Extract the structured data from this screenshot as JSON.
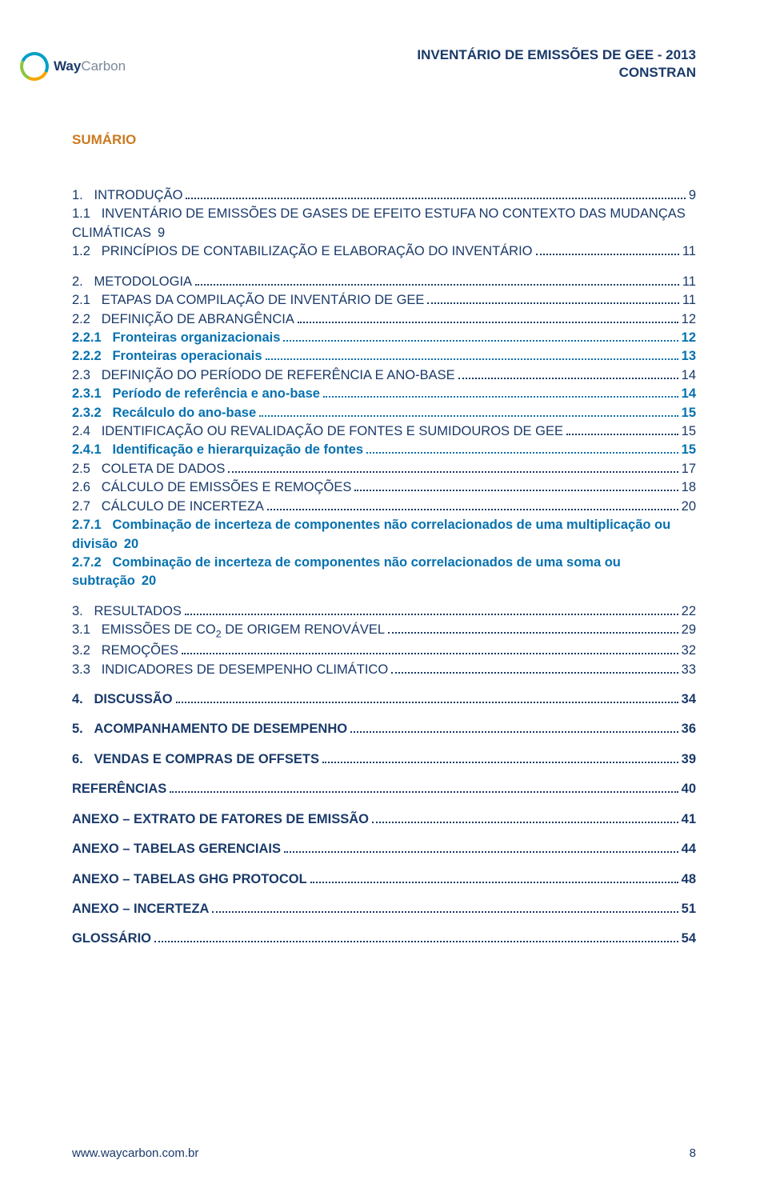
{
  "colors": {
    "main": "#1a3a6a",
    "sub": "#0671b0",
    "orange": "#cc7a1f",
    "background": "#ffffff"
  },
  "header": {
    "line1": "INVENTÁRIO DE EMISSÕES DE GEE - 2013",
    "line2": "CONSTRAN"
  },
  "logo": {
    "part1": "Way",
    "part2": "Carbon"
  },
  "sumario_label": "SUMÁRIO",
  "toc": [
    {
      "group": [
        {
          "type": "main",
          "num": "1.",
          "label": "INTRODUÇÃO",
          "page": "9"
        },
        {
          "type": "main",
          "num": "1.1",
          "label": "INVENTÁRIO DE EMISSÕES DE GASES DE EFEITO ESTUFA NO CONTEXTO DAS MUDANÇAS CLIMÁTICAS",
          "page": "9",
          "wrap": true
        },
        {
          "type": "main",
          "num": "1.2",
          "label": "PRINCÍPIOS DE CONTABILIZAÇÃO E ELABORAÇÃO DO INVENTÁRIO",
          "page": "11"
        }
      ]
    },
    {
      "group": [
        {
          "type": "main",
          "num": "2.",
          "label": "METODOLOGIA",
          "page": "11"
        },
        {
          "type": "main",
          "num": "2.1",
          "label": "ETAPAS DA COMPILAÇÃO DE INVENTÁRIO DE GEE",
          "page": "11"
        },
        {
          "type": "main",
          "num": "2.2",
          "label": "DEFINIÇÃO DE ABRANGÊNCIA",
          "page": "12"
        },
        {
          "type": "sub",
          "num": "2.2.1",
          "label": "Fronteiras organizacionais",
          "page": "12"
        },
        {
          "type": "sub",
          "num": "2.2.2",
          "label": "Fronteiras operacionais",
          "page": "13"
        },
        {
          "type": "main",
          "num": "2.3",
          "label": "DEFINIÇÃO DO PERÍODO DE REFERÊNCIA E ANO-BASE",
          "page": "14"
        },
        {
          "type": "sub",
          "num": "2.3.1",
          "label": "Período de referência e ano-base",
          "page": "14"
        },
        {
          "type": "sub",
          "num": "2.3.2",
          "label": "Recálculo do ano-base",
          "page": "15"
        },
        {
          "type": "main",
          "num": "2.4",
          "label": "IDENTIFICAÇÃO OU REVALIDAÇÃO DE FONTES E SUMIDOUROS DE GEE",
          "page": "15"
        },
        {
          "type": "sub",
          "num": "2.4.1",
          "label": "Identificação e hierarquização de fontes",
          "page": "15"
        },
        {
          "type": "main",
          "num": "2.5",
          "label": "COLETA DE DADOS",
          "page": "17"
        },
        {
          "type": "main",
          "num": "2.6",
          "label": "CÁLCULO DE EMISSÕES E REMOÇÕES",
          "page": "18"
        },
        {
          "type": "main",
          "num": "2.7",
          "label": "CÁLCULO DE INCERTEZA",
          "page": "20"
        },
        {
          "type": "sub",
          "num": "2.7.1",
          "label": "Combinação de incerteza de componentes não correlacionados de uma multiplicação ou divisão",
          "page": "20",
          "wrap": true
        },
        {
          "type": "sub",
          "num": "2.7.2",
          "label": "Combinação de incerteza de componentes não correlacionados de uma soma ou subtração",
          "page": "20",
          "wrap": true
        }
      ]
    },
    {
      "group": [
        {
          "type": "main",
          "num": "3.",
          "label": "RESULTADOS",
          "page": "22"
        },
        {
          "type": "main",
          "num": "3.1",
          "label": "EMISSÕES DE CO",
          "subscript": "2",
          "label2": " DE ORIGEM RENOVÁVEL",
          "page": "29"
        },
        {
          "type": "main",
          "num": "3.2",
          "label": "REMOÇÕES",
          "page": "32"
        },
        {
          "type": "main",
          "num": "3.3",
          "label": "INDICADORES DE DESEMPENHO CLIMÁTICO",
          "page": "33"
        }
      ]
    },
    {
      "group": [
        {
          "type": "main",
          "num": "4.",
          "label": "DISCUSSÃO",
          "page": "34",
          "bold": true
        }
      ]
    },
    {
      "group": [
        {
          "type": "main",
          "num": "5.",
          "label": "ACOMPANHAMENTO DE DESEMPENHO",
          "page": "36",
          "bold": true
        }
      ]
    },
    {
      "group": [
        {
          "type": "main",
          "num": "6.",
          "label": "VENDAS E COMPRAS DE OFFSETS",
          "page": "39",
          "bold": true
        }
      ]
    },
    {
      "group": [
        {
          "type": "main",
          "num": "",
          "label": "REFERÊNCIAS",
          "page": "40",
          "bold": true
        }
      ]
    },
    {
      "group": [
        {
          "type": "main",
          "num": "",
          "label": "ANEXO – EXTRATO DE FATORES DE EMISSÃO",
          "page": "41",
          "bold": true
        }
      ]
    },
    {
      "group": [
        {
          "type": "main",
          "num": "",
          "label": "ANEXO – TABELAS GERENCIAIS",
          "page": "44",
          "bold": true
        }
      ]
    },
    {
      "group": [
        {
          "type": "main",
          "num": "",
          "label": "ANEXO – TABELAS GHG PROTOCOL",
          "page": "48",
          "bold": true
        }
      ]
    },
    {
      "group": [
        {
          "type": "main",
          "num": "",
          "label": "ANEXO – INCERTEZA",
          "page": "51",
          "bold": true
        }
      ]
    },
    {
      "group": [
        {
          "type": "main",
          "num": "",
          "label": "GLOSSÁRIO",
          "page": "54",
          "bold": true
        }
      ]
    }
  ],
  "footer": {
    "url": "www.waycarbon.com.br",
    "page": "8"
  }
}
